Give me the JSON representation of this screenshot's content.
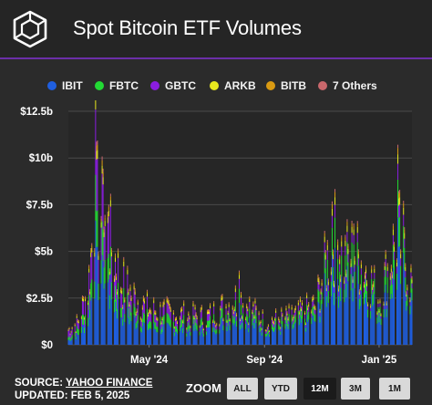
{
  "header": {
    "title": "Spot Bitcoin ETF Volumes"
  },
  "legend": [
    {
      "name": "IBIT",
      "color": "#1f5fe0"
    },
    {
      "name": "FBTC",
      "color": "#22d934"
    },
    {
      "name": "GBTC",
      "color": "#8a1de0"
    },
    {
      "name": "ARKB",
      "color": "#e8e81e"
    },
    {
      "name": "BITB",
      "color": "#d99a12"
    },
    {
      "name": "7 Others",
      "color": "#c9686c"
    }
  ],
  "footer": {
    "source_prefix": "SOURCE: ",
    "source_name": "YAHOO FINANCE",
    "updated": "UPDATED: FEB 5, 2025"
  },
  "zoom": {
    "label": "ZOOM",
    "options": [
      "ALL",
      "YTD",
      "12M",
      "3M",
      "1M"
    ],
    "selected": "12M"
  },
  "chart_data": {
    "type": "bar",
    "stacked": true,
    "unit": "$ billions",
    "ylim": [
      0,
      12.5
    ],
    "y_ticks": [
      0,
      2.5,
      5,
      7.5,
      10,
      12.5
    ],
    "y_tick_labels": [
      "$0",
      "$2.5b",
      "$5b",
      "$7.5b",
      "$10b",
      "$12.5b"
    ],
    "x_range": [
      "2024-02-05",
      "2025-02-05"
    ],
    "x_ticks": [
      {
        "date": "2024-05-01",
        "label": "May '24"
      },
      {
        "date": "2024-09-01",
        "label": "Sep '24"
      },
      {
        "date": "2025-01-01",
        "label": "Jan '25"
      }
    ],
    "grid": "horizontal",
    "legend_position": "top",
    "series_order": [
      "IBIT",
      "FBTC",
      "GBTC",
      "ARKB",
      "BITB",
      "7 Others"
    ],
    "series_colors": {
      "IBIT": "#1f5fe0",
      "FBTC": "#22d934",
      "GBTC": "#8a1de0",
      "ARKB": "#e8e81e",
      "BITB": "#d99a12",
      "7 Others": "#c9686c"
    },
    "anchors": [
      {
        "date": "2024-02-05",
        "IBIT": 0.25,
        "FBTC": 0.15,
        "GBTC": 0.35,
        "ARKB": 0.05,
        "BITB": 0.03,
        "7 Others": 0.03
      },
      {
        "date": "2024-02-15",
        "IBIT": 0.5,
        "FBTC": 0.3,
        "GBTC": 0.3,
        "ARKB": 0.08,
        "BITB": 0.05,
        "7 Others": 0.04
      },
      {
        "date": "2024-02-26",
        "IBIT": 1.3,
        "FBTC": 0.6,
        "GBTC": 0.9,
        "ARKB": 0.15,
        "BITB": 0.1,
        "7 Others": 0.06
      },
      {
        "date": "2024-03-05",
        "IBIT": 3.8,
        "FBTC": 1.4,
        "GBTC": 2.0,
        "ARKB": 0.35,
        "BITB": 0.2,
        "7 Others": 0.15
      },
      {
        "date": "2024-03-12",
        "IBIT": 3.4,
        "FBTC": 1.3,
        "GBTC": 1.8,
        "ARKB": 0.3,
        "BITB": 0.2,
        "7 Others": 0.15
      },
      {
        "date": "2024-03-19",
        "IBIT": 2.8,
        "FBTC": 1.1,
        "GBTC": 1.6,
        "ARKB": 0.25,
        "BITB": 0.15,
        "7 Others": 0.1
      },
      {
        "date": "2024-04-01",
        "IBIT": 1.7,
        "FBTC": 0.6,
        "GBTC": 0.9,
        "ARKB": 0.2,
        "BITB": 0.1,
        "7 Others": 0.08
      },
      {
        "date": "2024-04-15",
        "IBIT": 1.3,
        "FBTC": 0.5,
        "GBTC": 0.6,
        "ARKB": 0.15,
        "BITB": 0.1,
        "7 Others": 0.06
      },
      {
        "date": "2024-05-01",
        "IBIT": 0.9,
        "FBTC": 0.4,
        "GBTC": 0.45,
        "ARKB": 0.12,
        "BITB": 0.08,
        "7 Others": 0.05
      },
      {
        "date": "2024-06-01",
        "IBIT": 0.8,
        "FBTC": 0.35,
        "GBTC": 0.35,
        "ARKB": 0.1,
        "BITB": 0.07,
        "7 Others": 0.05
      },
      {
        "date": "2024-07-01",
        "IBIT": 0.75,
        "FBTC": 0.3,
        "GBTC": 0.3,
        "ARKB": 0.1,
        "BITB": 0.06,
        "7 Others": 0.04
      },
      {
        "date": "2024-08-05",
        "IBIT": 1.5,
        "FBTC": 0.5,
        "GBTC": 0.35,
        "ARKB": 0.15,
        "BITB": 0.1,
        "7 Others": 0.05
      },
      {
        "date": "2024-09-01",
        "IBIT": 0.7,
        "FBTC": 0.25,
        "GBTC": 0.2,
        "ARKB": 0.08,
        "BITB": 0.05,
        "7 Others": 0.04
      },
      {
        "date": "2024-10-01",
        "IBIT": 0.9,
        "FBTC": 0.3,
        "GBTC": 0.2,
        "ARKB": 0.1,
        "BITB": 0.06,
        "7 Others": 0.04
      },
      {
        "date": "2024-10-25",
        "IBIT": 1.3,
        "FBTC": 0.4,
        "GBTC": 0.25,
        "ARKB": 0.12,
        "BITB": 0.07,
        "7 Others": 0.05
      },
      {
        "date": "2024-11-08",
        "IBIT": 3.2,
        "FBTC": 0.9,
        "GBTC": 0.45,
        "ARKB": 0.25,
        "BITB": 0.15,
        "7 Others": 0.1
      },
      {
        "date": "2024-11-13",
        "IBIT": 3.8,
        "FBTC": 1.2,
        "GBTC": 0.5,
        "ARKB": 0.3,
        "BITB": 0.2,
        "7 Others": 0.12
      },
      {
        "date": "2024-11-25",
        "IBIT": 3.0,
        "FBTC": 0.9,
        "GBTC": 0.4,
        "ARKB": 0.25,
        "BITB": 0.15,
        "7 Others": 0.1
      },
      {
        "date": "2024-12-05",
        "IBIT": 3.3,
        "FBTC": 1.0,
        "GBTC": 0.4,
        "ARKB": 0.25,
        "BITB": 0.15,
        "7 Others": 0.1
      },
      {
        "date": "2024-12-18",
        "IBIT": 2.7,
        "FBTC": 0.8,
        "GBTC": 0.3,
        "ARKB": 0.2,
        "BITB": 0.12,
        "7 Others": 0.08
      },
      {
        "date": "2025-01-01",
        "IBIT": 1.6,
        "FBTC": 0.5,
        "GBTC": 0.2,
        "ARKB": 0.12,
        "BITB": 0.08,
        "7 Others": 0.05
      },
      {
        "date": "2025-01-21",
        "IBIT": 4.0,
        "FBTC": 1.2,
        "GBTC": 0.5,
        "ARKB": 0.3,
        "BITB": 0.2,
        "7 Others": 0.1
      },
      {
        "date": "2025-02-05",
        "IBIT": 2.2,
        "FBTC": 0.6,
        "GBTC": 0.25,
        "ARKB": 0.18,
        "BITB": 0.1,
        "7 Others": 0.07
      }
    ]
  }
}
